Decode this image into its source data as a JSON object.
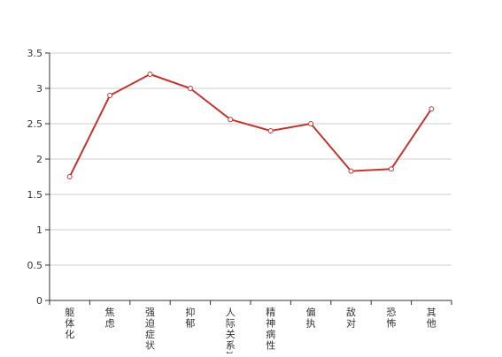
{
  "chart_data": {
    "type": "line",
    "categories": [
      "躯体化",
      "焦虑",
      "强迫症状",
      "抑郁",
      "人际关系敏感",
      "精神病性",
      "偏执",
      "敌对",
      "恐怖",
      "其他"
    ],
    "series": [
      {
        "values": [
          1.75,
          2.9,
          3.2,
          3.0,
          2.56,
          2.4,
          2.5,
          1.83,
          1.86,
          2.71
        ]
      }
    ],
    "y_ticks": [
      "0",
      "0.5",
      "1",
      "1.5",
      "2",
      "2.5",
      "3",
      "3.5"
    ],
    "ylim": [
      0,
      3.5
    ],
    "grid": "horizontal",
    "legend": "none",
    "colors": {
      "line": "#c23531",
      "marker_fill": "#ffffff",
      "grid": "#cccccc",
      "axis": "#333333",
      "text": "#333333"
    }
  }
}
